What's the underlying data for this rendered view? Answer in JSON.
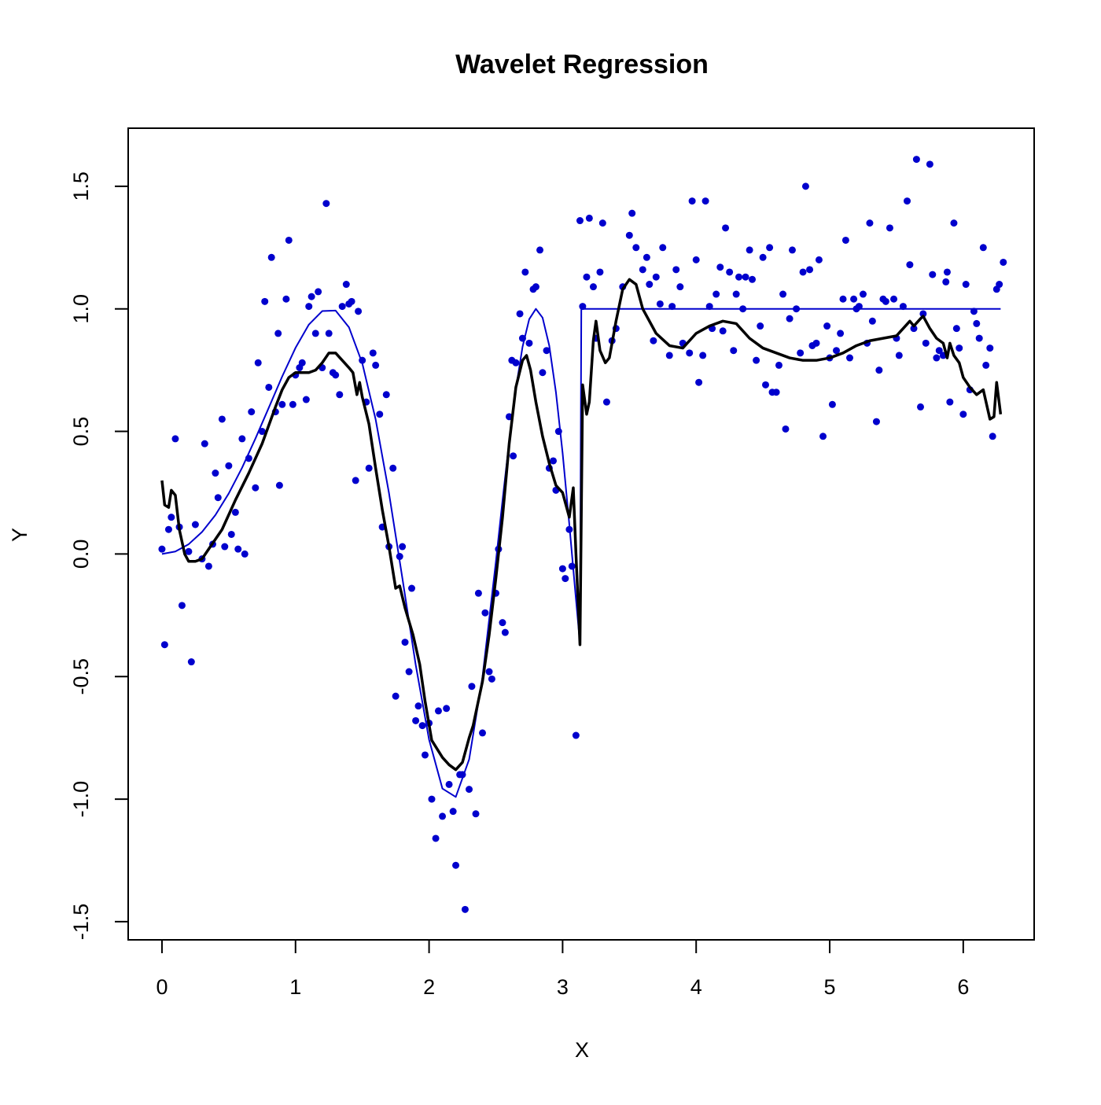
{
  "chart_data": {
    "type": "scatter",
    "title": "Wavelet Regression",
    "x_label": "X",
    "y_label": "Y",
    "xlim": [
      -0.253,
      6.531
    ],
    "ylim": [
      -1.574,
      1.737
    ],
    "xticks": [
      0,
      1,
      2,
      3,
      4,
      5,
      6
    ],
    "yticks": [
      -1.5,
      {
        "value": -1,
        "label": "-1.0"
      },
      -0.5,
      {
        "value": 0,
        "label": "0.0"
      },
      0.5,
      {
        "value": 1,
        "label": "1.0"
      },
      1.5
    ],
    "series": [
      {
        "type": "scatter",
        "color": "#0000cd",
        "x": [
          0,
          0.02,
          0.05,
          0.07,
          0.1,
          0.13,
          0.15,
          0.2,
          0.22,
          0.25,
          0.3,
          0.32,
          0.35,
          0.38,
          0.4,
          0.42,
          0.45,
          0.47,
          0.5,
          0.52,
          0.55,
          0.57,
          0.6,
          0.62,
          0.65,
          0.67,
          0.7,
          0.72,
          0.75,
          0.77,
          0.8,
          0.82,
          0.85,
          0.87,
          0.88,
          0.9,
          0.93,
          0.95,
          0.98,
          1.0,
          1.03,
          1.05,
          1.08,
          1.1,
          1.12,
          1.15,
          1.17,
          1.2,
          1.23,
          1.25,
          1.28,
          1.3,
          1.33,
          1.35,
          1.38,
          1.4,
          1.42,
          1.45,
          1.47,
          1.5,
          1.53,
          1.55,
          1.58,
          1.6,
          1.63,
          1.65,
          1.68,
          1.7,
          1.73,
          1.75,
          1.78,
          1.8,
          1.82,
          1.85,
          1.87,
          1.9,
          1.92,
          1.95,
          1.97,
          2.0,
          2.02,
          2.05,
          2.07,
          2.1,
          2.13,
          2.15,
          2.18,
          2.2,
          2.23,
          2.25,
          2.27,
          2.3,
          2.32,
          2.35,
          2.37,
          2.4,
          2.42,
          2.45,
          2.47,
          2.5,
          2.52,
          2.55,
          2.57,
          2.6,
          2.62,
          2.63,
          2.65,
          2.68,
          2.7,
          2.72,
          2.75,
          2.78,
          2.8,
          2.83,
          2.85,
          2.88,
          2.9,
          2.93,
          2.95,
          2.97,
          3.0,
          3.02,
          3.05,
          3.07,
          3.1,
          3.13,
          3.15,
          3.18,
          3.2,
          3.23,
          3.25,
          3.28,
          3.3,
          3.33,
          3.37,
          3.4,
          3.45,
          3.5,
          3.52,
          3.55,
          3.6,
          3.63,
          3.65,
          3.68,
          3.7,
          3.73,
          3.75,
          3.8,
          3.82,
          3.85,
          3.88,
          3.9,
          3.95,
          3.97,
          4.0,
          4.02,
          4.05,
          4.07,
          4.1,
          4.12,
          4.15,
          4.18,
          4.2,
          4.22,
          4.25,
          4.28,
          4.3,
          4.32,
          4.35,
          4.37,
          4.4,
          4.42,
          4.45,
          4.48,
          4.5,
          4.52,
          4.55,
          4.57,
          4.6,
          4.62,
          4.65,
          4.67,
          4.7,
          4.72,
          4.75,
          4.78,
          4.8,
          4.82,
          4.85,
          4.87,
          4.9,
          4.92,
          4.95,
          4.98,
          5.0,
          5.02,
          5.05,
          5.08,
          5.1,
          5.12,
          5.15,
          5.18,
          5.2,
          5.22,
          5.25,
          5.28,
          5.3,
          5.32,
          5.35,
          5.37,
          5.4,
          5.42,
          5.45,
          5.48,
          5.5,
          5.52,
          5.55,
          5.58,
          5.6,
          5.63,
          5.65,
          5.68,
          5.7,
          5.72,
          5.75,
          5.77,
          5.8,
          5.82,
          5.85,
          5.87,
          5.88,
          5.9,
          5.93,
          5.95,
          5.97,
          6.0,
          6.02,
          6.05,
          6.08,
          6.1,
          6.12,
          6.15,
          6.17,
          6.2,
          6.22,
          6.25,
          6.27,
          6.3
        ],
        "y": [
          0.02,
          -0.37,
          0.1,
          0.15,
          0.47,
          0.11,
          -0.21,
          0.01,
          -0.44,
          0.12,
          -0.02,
          0.45,
          -0.05,
          0.04,
          0.33,
          0.23,
          0.55,
          0.03,
          0.36,
          0.08,
          0.17,
          0.02,
          0.47,
          0.0,
          0.39,
          0.58,
          0.27,
          0.78,
          0.5,
          1.03,
          0.68,
          1.21,
          0.58,
          0.9,
          0.28,
          0.61,
          1.04,
          1.28,
          0.61,
          0.73,
          0.76,
          0.78,
          0.63,
          1.01,
          1.05,
          0.9,
          1.07,
          0.76,
          1.43,
          0.9,
          0.74,
          0.73,
          0.65,
          1.01,
          1.1,
          1.02,
          1.03,
          0.3,
          0.99,
          0.79,
          0.62,
          0.35,
          0.82,
          0.77,
          0.57,
          0.11,
          0.65,
          0.03,
          0.35,
          -0.58,
          -0.01,
          0.03,
          -0.36,
          -0.48,
          -0.14,
          -0.68,
          -0.62,
          -0.7,
          -0.82,
          -0.69,
          -1.0,
          -1.16,
          -0.64,
          -1.07,
          -0.63,
          -0.94,
          -1.05,
          -1.27,
          -0.9,
          -0.9,
          -1.45,
          -0.96,
          -0.54,
          -1.06,
          -0.16,
          -0.73,
          -0.24,
          -0.48,
          -0.51,
          -0.16,
          0.02,
          -0.28,
          -0.32,
          0.56,
          0.79,
          0.4,
          0.78,
          0.98,
          0.88,
          1.15,
          0.86,
          1.08,
          1.09,
          1.24,
          0.74,
          0.83,
          0.35,
          0.38,
          0.26,
          0.5,
          -0.06,
          -0.1,
          0.1,
          -0.05,
          -0.74,
          1.36,
          1.01,
          1.13,
          1.37,
          1.09,
          0.88,
          1.15,
          1.35,
          0.62,
          0.87,
          0.92,
          1.09,
          1.3,
          1.39,
          1.25,
          1.16,
          1.21,
          1.1,
          0.87,
          1.13,
          1.02,
          1.25,
          0.81,
          1.01,
          1.16,
          1.09,
          0.86,
          0.82,
          1.44,
          1.2,
          0.7,
          0.81,
          1.44,
          1.01,
          0.92,
          1.06,
          1.17,
          0.91,
          1.33,
          1.15,
          0.83,
          1.06,
          1.13,
          1.0,
          1.13,
          1.24,
          1.12,
          0.79,
          0.93,
          1.21,
          0.69,
          1.25,
          0.66,
          0.66,
          0.77,
          1.06,
          0.51,
          0.96,
          1.24,
          1.0,
          0.82,
          1.15,
          1.5,
          1.16,
          0.85,
          0.86,
          1.2,
          0.48,
          0.93,
          0.8,
          0.61,
          0.83,
          0.9,
          1.04,
          1.28,
          0.8,
          1.04,
          1.0,
          1.01,
          1.06,
          0.86,
          1.35,
          0.95,
          0.54,
          0.75,
          1.04,
          1.03,
          1.33,
          1.04,
          0.88,
          0.81,
          1.01,
          1.44,
          1.18,
          0.92,
          1.61,
          0.6,
          0.98,
          0.86,
          1.59,
          1.14,
          0.8,
          0.83,
          0.81,
          1.11,
          1.15,
          0.62,
          1.35,
          0.92,
          0.84,
          0.57,
          1.1,
          0.67,
          0.99,
          0.94,
          0.88,
          1.25,
          0.77,
          0.84,
          0.48,
          1.08,
          1.1,
          1.19
        ]
      },
      {
        "type": "line",
        "color": "#0000cd",
        "width": 2,
        "x": [
          0,
          0.1,
          0.2,
          0.3,
          0.4,
          0.5,
          0.6,
          0.7,
          0.8,
          0.9,
          1.0,
          1.1,
          1.2,
          1.3,
          1.4,
          1.5,
          1.6,
          1.7,
          1.8,
          1.9,
          2.0,
          2.1,
          2.2,
          2.3,
          2.4,
          2.5,
          2.55,
          2.6,
          2.65,
          2.7,
          2.75,
          2.8,
          2.85,
          2.9,
          2.95,
          3.0,
          3.05,
          3.1,
          3.13,
          3.14,
          6.28
        ],
        "y": [
          0,
          0.01,
          0.04,
          0.09,
          0.159,
          0.247,
          0.352,
          0.471,
          0.597,
          0.724,
          0.841,
          0.936,
          0.991,
          0.993,
          0.925,
          0.778,
          0.549,
          0.248,
          -0.098,
          -0.452,
          -0.757,
          -0.957,
          -0.991,
          -0.838,
          -0.502,
          -0.033,
          0.218,
          0.459,
          0.674,
          0.845,
          0.958,
          1.0,
          0.964,
          0.85,
          0.66,
          0.412,
          0.122,
          -0.184,
          -0.364,
          1,
          1
        ]
      },
      {
        "type": "line",
        "color": "#000000",
        "width": 3.5,
        "x": [
          0,
          0.02,
          0.05,
          0.07,
          0.1,
          0.13,
          0.17,
          0.2,
          0.25,
          0.3,
          0.35,
          0.45,
          0.55,
          0.65,
          0.75,
          0.85,
          0.9,
          0.95,
          1.0,
          1.1,
          1.15,
          1.2,
          1.25,
          1.3,
          1.4,
          1.43,
          1.46,
          1.48,
          1.5,
          1.55,
          1.6,
          1.65,
          1.7,
          1.75,
          1.78,
          1.82,
          1.88,
          1.93,
          1.97,
          2.02,
          2.1,
          2.15,
          2.2,
          2.25,
          2.3,
          2.33,
          2.4,
          2.45,
          2.5,
          2.55,
          2.6,
          2.65,
          2.7,
          2.73,
          2.76,
          2.8,
          2.85,
          2.9,
          2.95,
          3.0,
          3.05,
          3.08,
          3.1,
          3.13,
          3.15,
          3.18,
          3.2,
          3.23,
          3.25,
          3.28,
          3.32,
          3.35,
          3.4,
          3.45,
          3.5,
          3.55,
          3.6,
          3.7,
          3.8,
          3.9,
          4.0,
          4.1,
          4.2,
          4.3,
          4.4,
          4.5,
          4.6,
          4.7,
          4.8,
          4.9,
          5.0,
          5.1,
          5.2,
          5.3,
          5.4,
          5.5,
          5.55,
          5.6,
          5.63,
          5.68,
          5.7,
          5.75,
          5.8,
          5.85,
          5.88,
          5.9,
          5.93,
          5.97,
          6.0,
          6.05,
          6.1,
          6.15,
          6.2,
          6.23,
          6.25,
          6.28
        ],
        "y": [
          0.3,
          0.2,
          0.19,
          0.26,
          0.24,
          0.1,
          0.0,
          -0.03,
          -0.03,
          -0.02,
          0.02,
          0.1,
          0.22,
          0.33,
          0.45,
          0.6,
          0.67,
          0.72,
          0.74,
          0.74,
          0.75,
          0.78,
          0.82,
          0.82,
          0.76,
          0.74,
          0.65,
          0.7,
          0.64,
          0.53,
          0.35,
          0.18,
          0.03,
          -0.14,
          -0.13,
          -0.22,
          -0.33,
          -0.45,
          -0.6,
          -0.76,
          -0.83,
          -0.86,
          -0.88,
          -0.85,
          -0.75,
          -0.7,
          -0.52,
          -0.33,
          -0.1,
          0.15,
          0.45,
          0.68,
          0.79,
          0.81,
          0.75,
          0.62,
          0.48,
          0.37,
          0.28,
          0.25,
          0.15,
          0.27,
          0.0,
          -0.37,
          0.69,
          0.57,
          0.62,
          0.87,
          0.95,
          0.83,
          0.78,
          0.8,
          0.95,
          1.08,
          1.12,
          1.1,
          1.0,
          0.9,
          0.85,
          0.84,
          0.9,
          0.93,
          0.95,
          0.94,
          0.88,
          0.84,
          0.82,
          0.8,
          0.79,
          0.79,
          0.8,
          0.82,
          0.85,
          0.87,
          0.88,
          0.89,
          0.92,
          0.95,
          0.93,
          0.96,
          0.97,
          0.92,
          0.88,
          0.86,
          0.8,
          0.86,
          0.81,
          0.78,
          0.72,
          0.68,
          0.65,
          0.67,
          0.55,
          0.56,
          0.7,
          0.57
        ]
      }
    ]
  }
}
